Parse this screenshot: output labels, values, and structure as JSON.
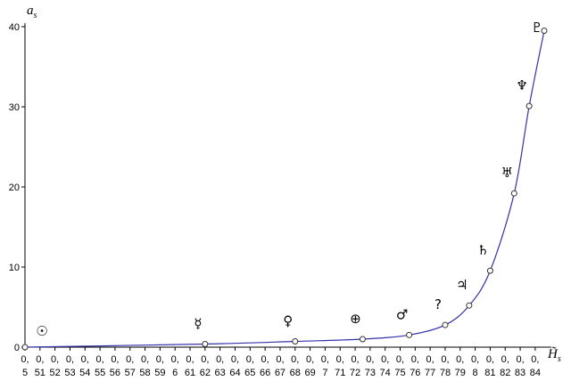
{
  "chart_data": {
    "type": "line",
    "y_label": "a",
    "y_label_sub": "s",
    "x_label": "H̃",
    "x_label_sub": "s",
    "x": [
      0.5,
      0.62,
      0.68,
      0.725,
      0.756,
      0.78,
      0.796,
      0.81,
      0.826,
      0.836,
      0.846
    ],
    "series": [
      {
        "name": "a_s",
        "color": "#3333aa",
        "values": [
          0,
          0.39,
          0.72,
          1.0,
          1.52,
          2.77,
          5.2,
          9.54,
          19.2,
          30.1,
          39.5
        ]
      }
    ],
    "symbols": [
      "☉",
      "☿",
      "♀",
      "⊕",
      "♂",
      "?",
      "♃",
      "♄",
      "♅",
      "♆",
      "♇"
    ],
    "xlim": [
      0.5,
      0.85
    ],
    "ylim": [
      0,
      40
    ],
    "yticks": [
      0,
      10,
      20,
      30,
      40
    ],
    "xticks": [
      {
        "value": 0.5,
        "label": "0,5"
      },
      {
        "value": 0.51,
        "label": "0,51"
      },
      {
        "value": 0.52,
        "label": "0,52"
      },
      {
        "value": 0.53,
        "label": "0,53"
      },
      {
        "value": 0.54,
        "label": "0,54"
      },
      {
        "value": 0.55,
        "label": "0,55"
      },
      {
        "value": 0.56,
        "label": "0,56"
      },
      {
        "value": 0.57,
        "label": "0,57"
      },
      {
        "value": 0.58,
        "label": "0,58"
      },
      {
        "value": 0.59,
        "label": "0,59"
      },
      {
        "value": 0.6,
        "label": "0,6"
      },
      {
        "value": 0.61,
        "label": "0,61"
      },
      {
        "value": 0.62,
        "label": "0,62"
      },
      {
        "value": 0.63,
        "label": "0,63"
      },
      {
        "value": 0.64,
        "label": "0,64"
      },
      {
        "value": 0.65,
        "label": "0,65"
      },
      {
        "value": 0.66,
        "label": "0,66"
      },
      {
        "value": 0.67,
        "label": "0,67"
      },
      {
        "value": 0.68,
        "label": "0,68"
      },
      {
        "value": 0.69,
        "label": "0,69"
      },
      {
        "value": 0.7,
        "label": "0,7"
      },
      {
        "value": 0.71,
        "label": "0,71"
      },
      {
        "value": 0.72,
        "label": "0,72"
      },
      {
        "value": 0.73,
        "label": "0,73"
      },
      {
        "value": 0.74,
        "label": "0,74"
      },
      {
        "value": 0.75,
        "label": "0,75"
      },
      {
        "value": 0.76,
        "label": "0,76"
      },
      {
        "value": 0.77,
        "label": "0,77"
      },
      {
        "value": 0.78,
        "label": "0,78"
      },
      {
        "value": 0.79,
        "label": "0,79"
      },
      {
        "value": 0.8,
        "label": "0,8"
      },
      {
        "value": 0.81,
        "label": "0,81"
      },
      {
        "value": 0.82,
        "label": "0,82"
      },
      {
        "value": 0.83,
        "label": "0,83"
      },
      {
        "value": 0.84,
        "label": "0,84"
      }
    ]
  }
}
